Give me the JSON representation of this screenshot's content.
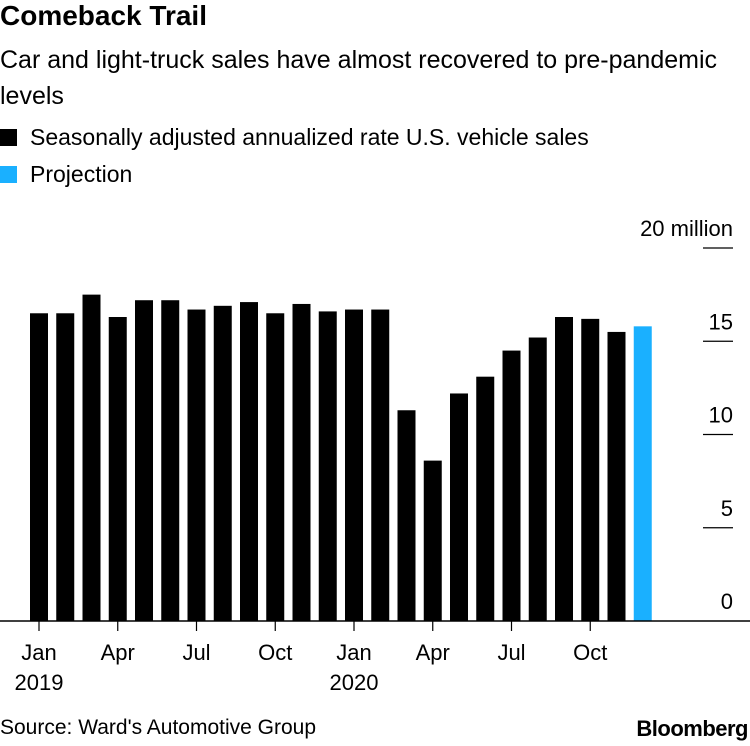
{
  "chart_data": {
    "type": "bar",
    "title": "Comeback Trail",
    "subtitle": "Car and light-truck sales have almost recovered to pre-pandemic levels",
    "ylabel": "",
    "xlabel": "",
    "ylim": [
      0,
      20
    ],
    "y_ticks": [
      {
        "value": 20,
        "label": "20 million"
      },
      {
        "value": 15,
        "label": "15"
      },
      {
        "value": 10,
        "label": "10"
      },
      {
        "value": 5,
        "label": "5"
      },
      {
        "value": 0,
        "label": "0"
      }
    ],
    "categories": [
      "2019-01",
      "2019-02",
      "2019-03",
      "2019-04",
      "2019-05",
      "2019-06",
      "2019-07",
      "2019-08",
      "2019-09",
      "2019-10",
      "2019-11",
      "2019-12",
      "2020-01",
      "2020-02",
      "2020-03",
      "2020-04",
      "2020-05",
      "2020-06",
      "2020-07",
      "2020-08",
      "2020-09",
      "2020-10",
      "2020-11",
      "2020-12"
    ],
    "x_ticks": [
      {
        "category": "2019-01",
        "label": "Jan",
        "year": "2019"
      },
      {
        "category": "2019-04",
        "label": "Apr",
        "year": ""
      },
      {
        "category": "2019-07",
        "label": "Jul",
        "year": ""
      },
      {
        "category": "2019-10",
        "label": "Oct",
        "year": ""
      },
      {
        "category": "2020-01",
        "label": "Jan",
        "year": "2020"
      },
      {
        "category": "2020-04",
        "label": "Apr",
        "year": ""
      },
      {
        "category": "2020-07",
        "label": "Jul",
        "year": ""
      },
      {
        "category": "2020-10",
        "label": "Oct",
        "year": ""
      }
    ],
    "series": [
      {
        "name": "Seasonally adjusted annualized rate U.S. vehicle sales",
        "color": "#000000",
        "values": [
          16.5,
          16.5,
          17.5,
          16.3,
          17.2,
          17.2,
          16.7,
          16.9,
          17.1,
          16.5,
          17.0,
          16.6,
          16.7,
          16.7,
          11.3,
          8.6,
          12.2,
          13.1,
          14.5,
          15.2,
          16.3,
          16.2,
          15.5,
          null
        ]
      },
      {
        "name": "Projection",
        "color": "#1ab0ff",
        "values": [
          null,
          null,
          null,
          null,
          null,
          null,
          null,
          null,
          null,
          null,
          null,
          null,
          null,
          null,
          null,
          null,
          null,
          null,
          null,
          null,
          null,
          null,
          null,
          15.8
        ]
      }
    ],
    "grid": false,
    "legend_placement": "top-left"
  },
  "source": "Source: Ward's Automotive Group",
  "brand": "Bloomberg"
}
